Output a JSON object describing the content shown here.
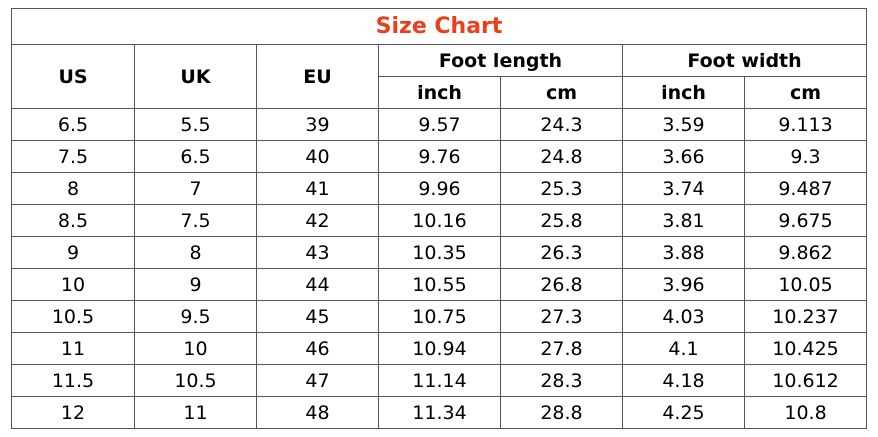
{
  "table": {
    "title": "Size Chart",
    "columns": [
      "US",
      "UK",
      "EU"
    ],
    "groups": [
      {
        "label": "Foot length",
        "units": [
          "inch",
          "cm"
        ]
      },
      {
        "label": "Foot width",
        "units": [
          "inch",
          "cm"
        ]
      }
    ],
    "rows": [
      [
        "6.5",
        "5.5",
        "39",
        "9.57",
        "24.3",
        "3.59",
        "9.113"
      ],
      [
        "7.5",
        "6.5",
        "40",
        "9.76",
        "24.8",
        "3.66",
        "9.3"
      ],
      [
        "8",
        "7",
        "41",
        "9.96",
        "25.3",
        "3.74",
        "9.487"
      ],
      [
        "8.5",
        "7.5",
        "42",
        "10.16",
        "25.8",
        "3.81",
        "9.675"
      ],
      [
        "9",
        "8",
        "43",
        "10.35",
        "26.3",
        "3.88",
        "9.862"
      ],
      [
        "10",
        "9",
        "44",
        "10.55",
        "26.8",
        "3.96",
        "10.05"
      ],
      [
        "10.5",
        "9.5",
        "45",
        "10.75",
        "27.3",
        "4.03",
        "10.237"
      ],
      [
        "11",
        "10",
        "46",
        "10.94",
        "27.8",
        "4.1",
        "10.425"
      ],
      [
        "11.5",
        "10.5",
        "47",
        "11.14",
        "28.3",
        "4.18",
        "10.612"
      ],
      [
        "12",
        "11",
        "48",
        "11.34",
        "28.8",
        "4.25",
        "10.8"
      ]
    ]
  }
}
